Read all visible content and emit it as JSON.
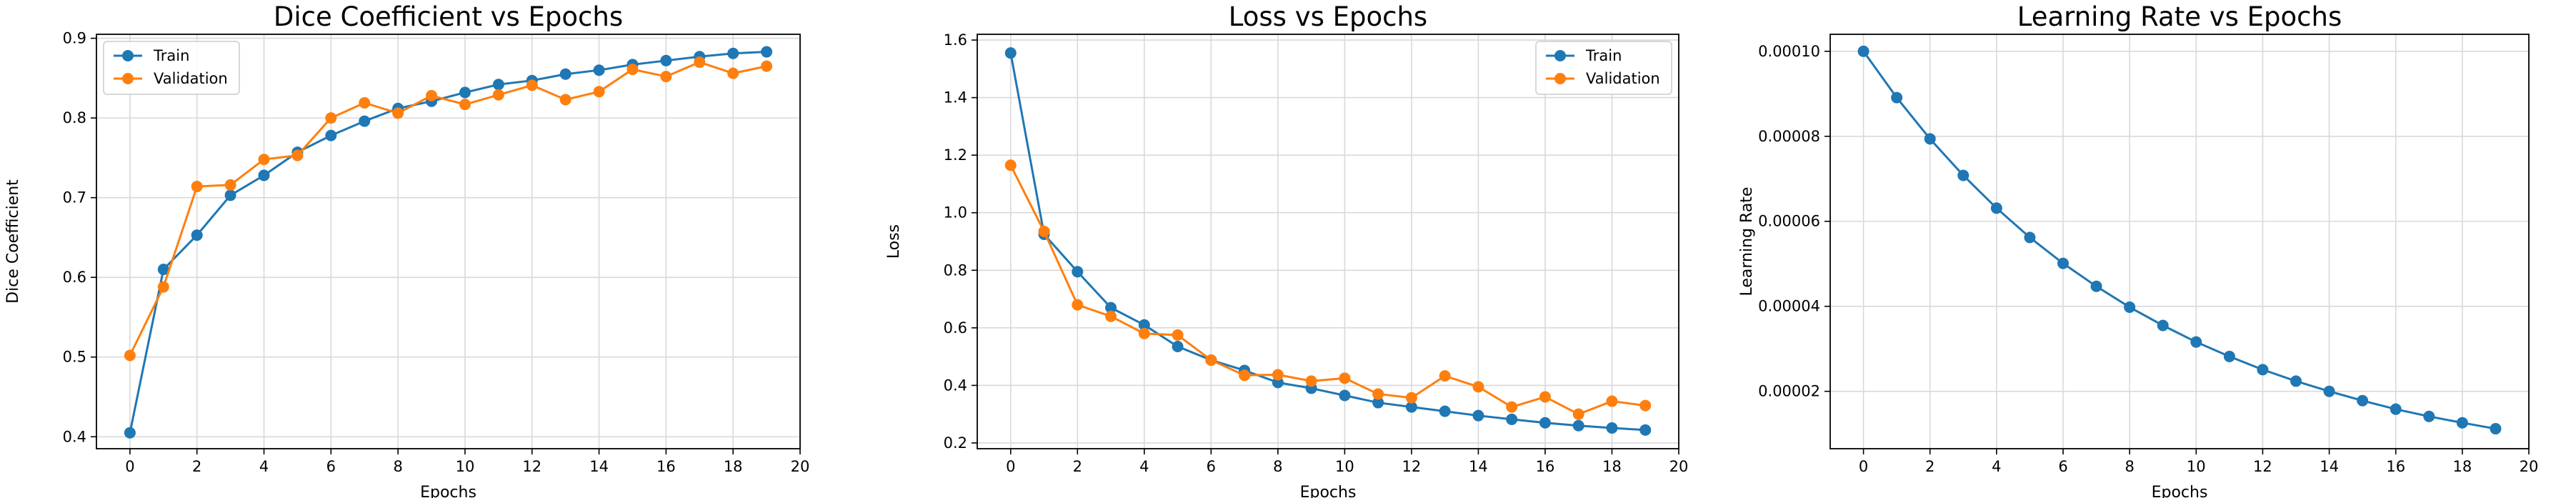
{
  "colors": {
    "train": "#1f77b4",
    "validation": "#ff7f0e",
    "grid": "#d9d9d9"
  },
  "chart_data": [
    {
      "type": "line",
      "title": "Dice Coefficient vs Epochs",
      "xlabel": "Epochs",
      "ylabel": "Dice Coefficient",
      "xlim": [
        -1,
        20
      ],
      "ylim": [
        0.385,
        0.905
      ],
      "xticks": [
        "0",
        "2",
        "4",
        "6",
        "8",
        "10",
        "12",
        "14",
        "16",
        "18",
        "20"
      ],
      "yticks": [
        "0.4",
        "0.5",
        "0.6",
        "0.7",
        "0.8",
        "0.9"
      ],
      "grid": true,
      "legend_position": "top-left",
      "x": [
        0,
        1,
        2,
        3,
        4,
        5,
        6,
        7,
        8,
        9,
        10,
        11,
        12,
        13,
        14,
        15,
        16,
        17,
        18,
        19
      ],
      "series": [
        {
          "name": "Train",
          "color": "#1f77b4",
          "values": [
            0.405,
            0.61,
            0.653,
            0.703,
            0.728,
            0.757,
            0.778,
            0.796,
            0.812,
            0.821,
            0.832,
            0.842,
            0.847,
            0.855,
            0.86,
            0.867,
            0.872,
            0.877,
            0.881,
            0.883
          ]
        },
        {
          "name": "Validation",
          "color": "#ff7f0e",
          "values": [
            0.502,
            0.588,
            0.714,
            0.716,
            0.748,
            0.753,
            0.8,
            0.819,
            0.806,
            0.828,
            0.817,
            0.829,
            0.841,
            0.823,
            0.833,
            0.861,
            0.852,
            0.87,
            0.856,
            0.865
          ]
        }
      ]
    },
    {
      "type": "line",
      "title": "Loss vs Epochs",
      "xlabel": "Epochs",
      "ylabel": "Loss",
      "xlim": [
        -1,
        20
      ],
      "ylim": [
        0.18,
        1.62
      ],
      "xticks": [
        "0",
        "2",
        "4",
        "6",
        "8",
        "10",
        "12",
        "14",
        "16",
        "18",
        "20"
      ],
      "yticks": [
        "0.2",
        "0.4",
        "0.6",
        "0.8",
        "1.0",
        "1.2",
        "1.4",
        "1.6"
      ],
      "grid": true,
      "legend_position": "top-right",
      "x": [
        0,
        1,
        2,
        3,
        4,
        5,
        6,
        7,
        8,
        9,
        10,
        11,
        12,
        13,
        14,
        15,
        16,
        17,
        18,
        19
      ],
      "series": [
        {
          "name": "Train",
          "color": "#1f77b4",
          "values": [
            1.555,
            0.925,
            0.795,
            0.67,
            0.61,
            0.535,
            0.488,
            0.452,
            0.41,
            0.39,
            0.365,
            0.34,
            0.325,
            0.31,
            0.295,
            0.282,
            0.27,
            0.26,
            0.252,
            0.245
          ]
        },
        {
          "name": "Validation",
          "color": "#ff7f0e",
          "values": [
            1.165,
            0.935,
            0.68,
            0.64,
            0.58,
            0.575,
            0.488,
            0.435,
            0.437,
            0.415,
            0.425,
            0.37,
            0.357,
            0.433,
            0.395,
            0.325,
            0.36,
            0.3,
            0.345,
            0.33
          ]
        }
      ]
    },
    {
      "type": "line",
      "title": "Learning Rate vs Epochs",
      "xlabel": "Epochs",
      "ylabel": "Learning Rate",
      "xlim": [
        -1,
        20
      ],
      "ylim": [
        6.5e-06,
        0.000104
      ],
      "xticks": [
        "0",
        "2",
        "4",
        "6",
        "8",
        "10",
        "12",
        "14",
        "16",
        "18",
        "20"
      ],
      "yticks": [
        "0.00002",
        "0.00004",
        "0.00006",
        "0.00008",
        "0.00010"
      ],
      "grid": true,
      "legend_position": "",
      "x": [
        0,
        1,
        2,
        3,
        4,
        5,
        6,
        7,
        8,
        9,
        10,
        11,
        12,
        13,
        14,
        15,
        16,
        17,
        18,
        19
      ],
      "series": [
        {
          "name": "",
          "color": "#1f77b4",
          "values": [
            0.0001,
            8.91e-05,
            7.94e-05,
            7.08e-05,
            6.31e-05,
            5.62e-05,
            5.01e-05,
            4.47e-05,
            3.98e-05,
            3.55e-05,
            3.16e-05,
            2.82e-05,
            2.51e-05,
            2.24e-05,
            2e-05,
            1.78e-05,
            1.58e-05,
            1.41e-05,
            1.26e-05,
            1.12e-05
          ]
        }
      ]
    }
  ]
}
